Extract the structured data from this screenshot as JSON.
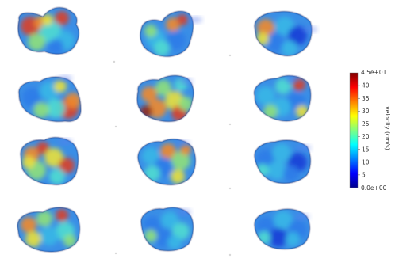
{
  "panels": [
    {
      "row": 0,
      "col": 0,
      "intensity": "high"
    },
    {
      "row": 0,
      "col": 1,
      "intensity": "medium"
    },
    {
      "row": 0,
      "col": 2,
      "intensity": "medium"
    },
    {
      "row": 1,
      "col": 0,
      "intensity": "medium"
    },
    {
      "row": 1,
      "col": 1,
      "intensity": "high"
    },
    {
      "row": 1,
      "col": 2,
      "intensity": "medium"
    },
    {
      "row": 2,
      "col": 0,
      "intensity": "high"
    },
    {
      "row": 2,
      "col": 1,
      "intensity": "medium"
    },
    {
      "row": 2,
      "col": 2,
      "intensity": "low"
    },
    {
      "row": 3,
      "col": 0,
      "intensity": "high"
    },
    {
      "row": 3,
      "col": 1,
      "intensity": "low"
    },
    {
      "row": 3,
      "col": 2,
      "intensity": "low"
    }
  ],
  "colorbar": {
    "title": "velocity (cm/s)",
    "min_label": "0.0e+00",
    "max_label": "4.5e+01",
    "ticks": [
      "40",
      "35",
      "30",
      "25",
      "20",
      "15",
      "10",
      "5"
    ],
    "min": 0,
    "max": 45,
    "colors": [
      "#00008f",
      "#0000ff",
      "#0080ff",
      "#00ffff",
      "#80ff80",
      "#ffff00",
      "#ff8000",
      "#ff0000",
      "#800000"
    ]
  }
}
